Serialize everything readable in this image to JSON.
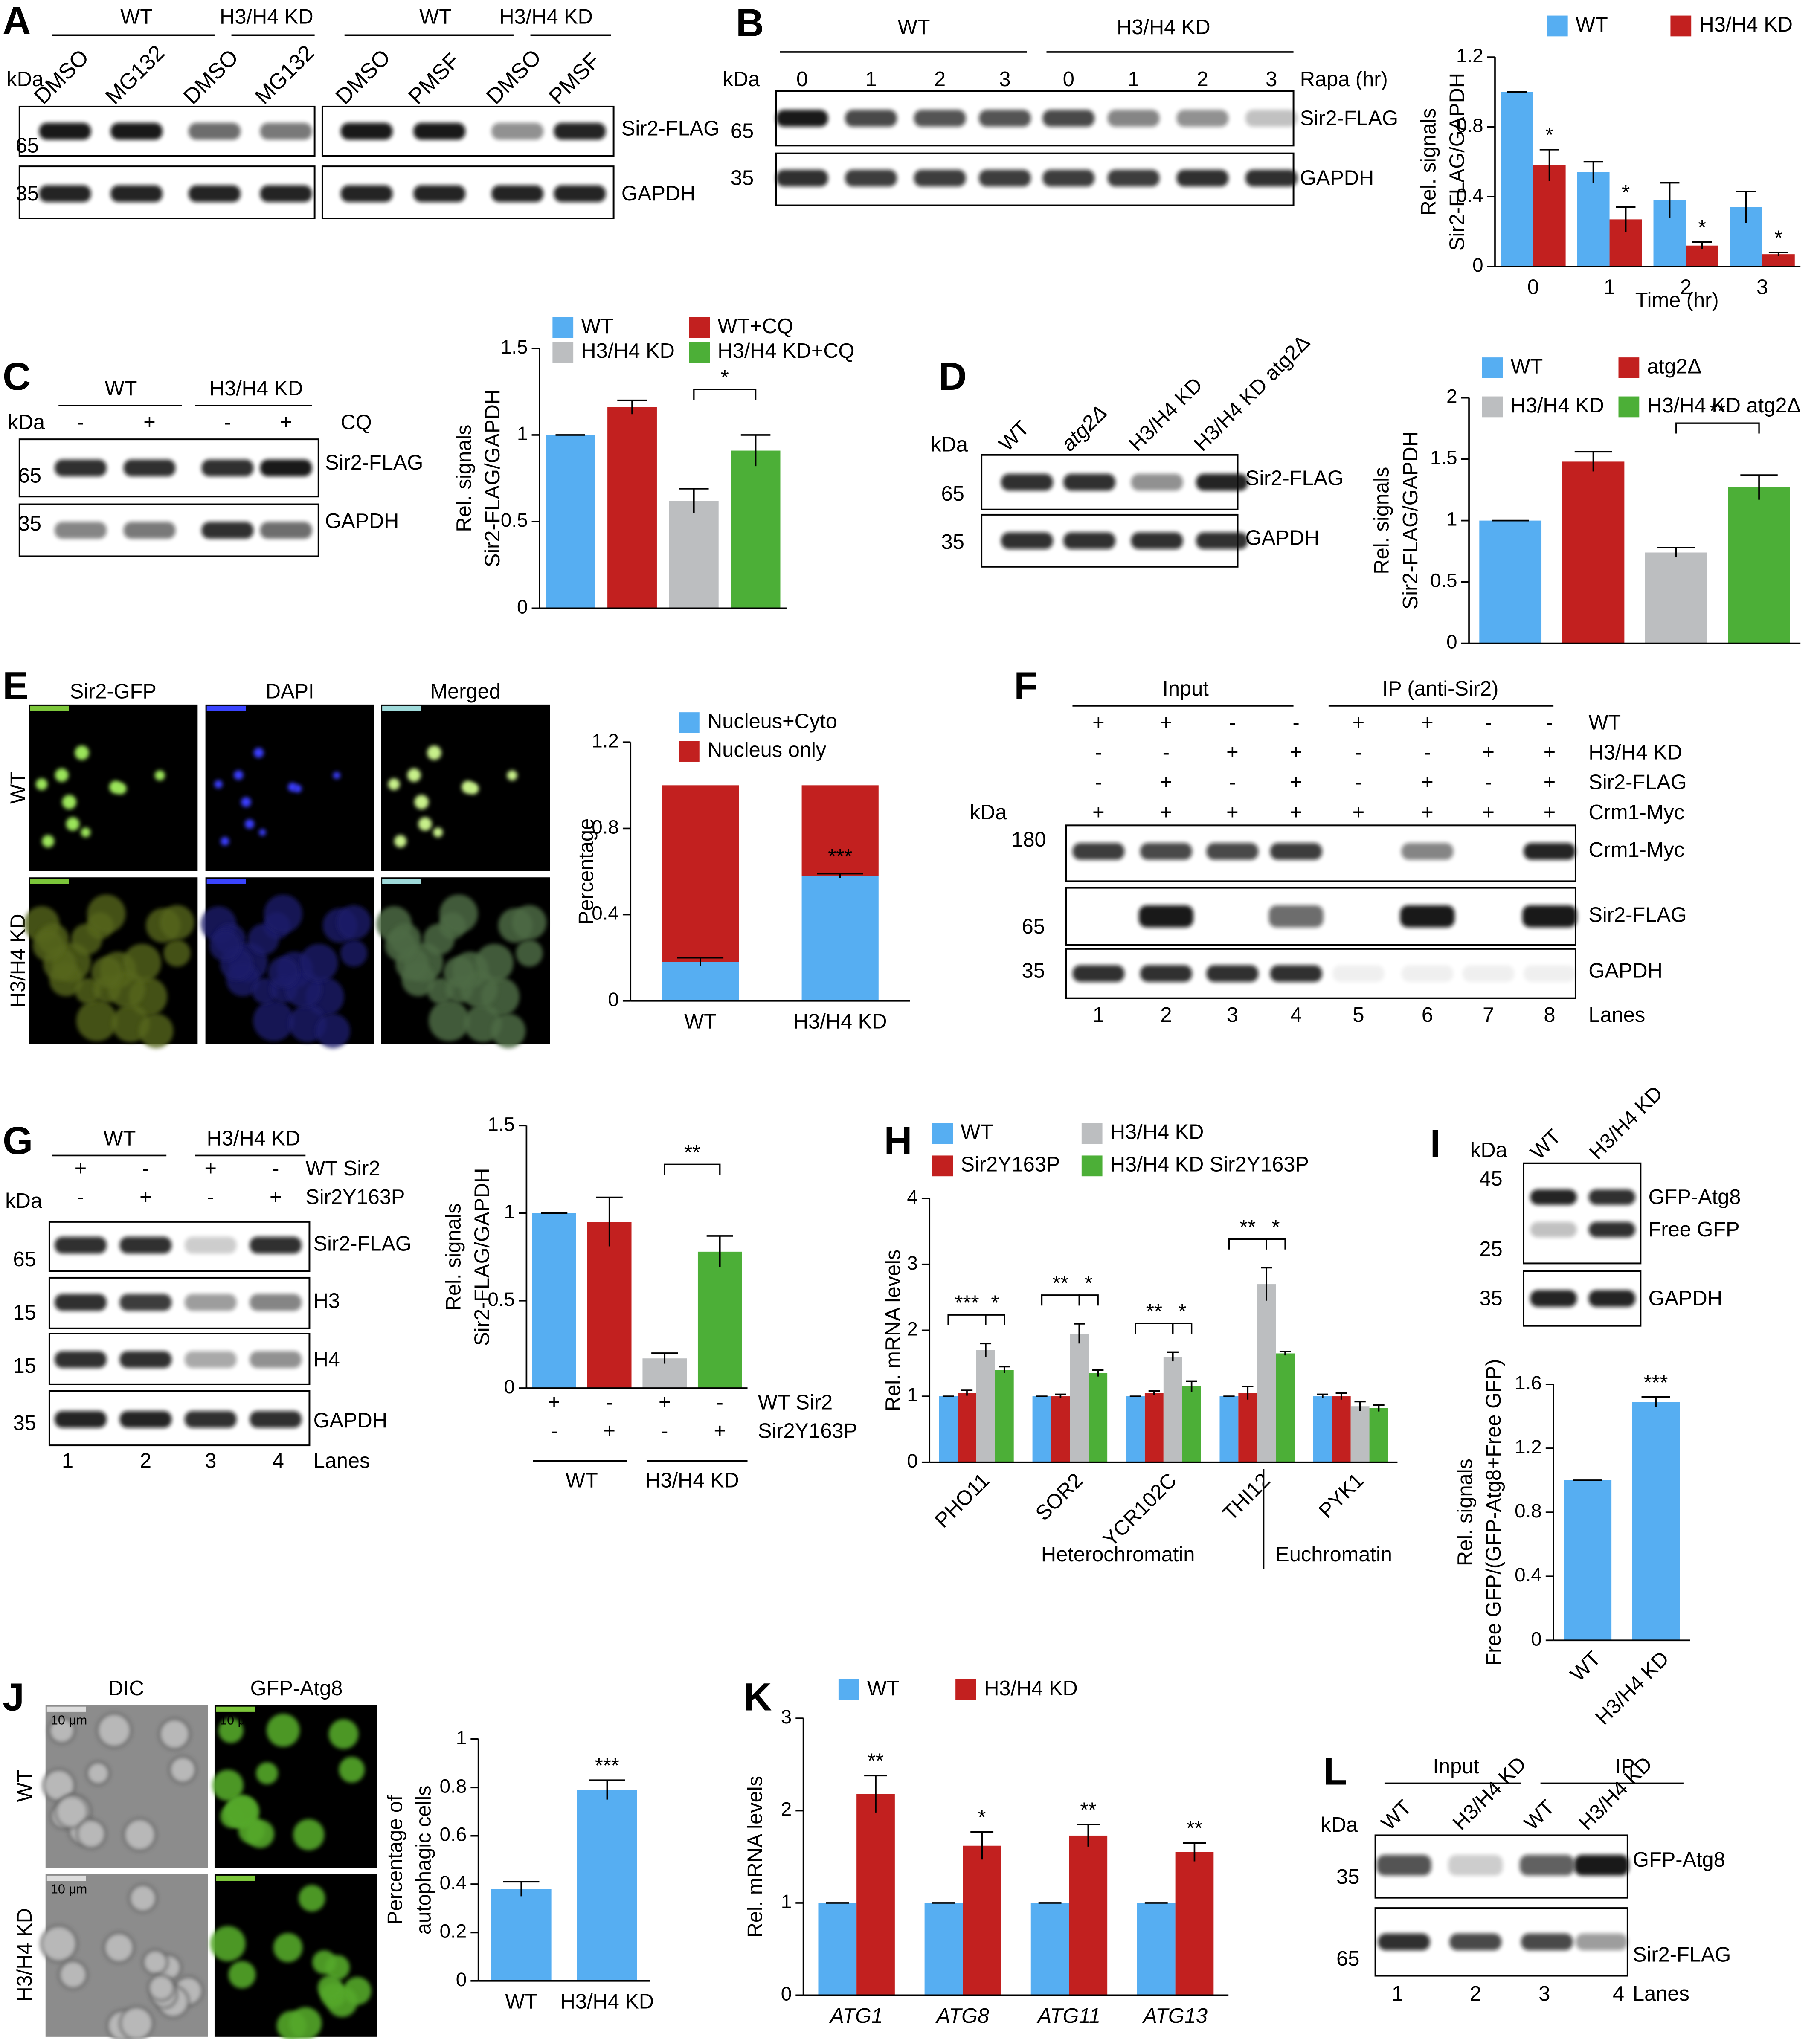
{
  "panel_letters": [
    "A",
    "B",
    "C",
    "D",
    "E",
    "F",
    "G",
    "H",
    "I",
    "J",
    "K",
    "L"
  ],
  "blots": {
    "A": {
      "groups": [
        "WT",
        "H3/H4 KD",
        "WT",
        "H3/H4 KD"
      ],
      "lanes": [
        "DMSO",
        "MG132",
        "DMSO",
        "MG132",
        "DMSO",
        "PMSF",
        "DMSO",
        "PMSF"
      ],
      "kda": "kDa",
      "markers": [
        "65",
        "35"
      ],
      "bands": [
        "Sir2-FLAG",
        "GAPDH"
      ]
    },
    "B": {
      "groups": [
        "WT",
        "H3/H4 KD"
      ],
      "lanes": [
        "0",
        "1",
        "2",
        "3",
        "0",
        "1",
        "2",
        "3"
      ],
      "lane_caption": "Rapa (hr)",
      "kda": "kDa",
      "markers": [
        "65",
        "35"
      ],
      "bands": [
        "Sir2-FLAG",
        "GAPDH"
      ]
    },
    "C": {
      "groups": [
        "WT",
        "H3/H4 KD"
      ],
      "lanes": [
        "-",
        "+",
        "-",
        "+"
      ],
      "lane_caption": "CQ",
      "kda": "kDa",
      "markers": [
        "65",
        "35"
      ],
      "bands": [
        "Sir2-FLAG",
        "GAPDH"
      ]
    },
    "D": {
      "lanes": [
        "WT",
        "atg2Δ",
        "H3/H4 KD",
        "H3/H4 KD atg2Δ"
      ],
      "kda": "kDa",
      "markers": [
        "65",
        "35"
      ],
      "bands": [
        "Sir2-FLAG",
        "GAPDH"
      ]
    },
    "F": {
      "groups": [
        "Input",
        "IP (anti-Sir2)"
      ],
      "rows": [
        {
          "label": "WT",
          "signs": [
            "+",
            "+",
            "-",
            "-",
            "+",
            "+",
            "-",
            "-"
          ]
        },
        {
          "label": "H3/H4 KD",
          "signs": [
            "-",
            "-",
            "+",
            "+",
            "-",
            "-",
            "+",
            "+"
          ]
        },
        {
          "label": "Sir2-FLAG",
          "signs": [
            "-",
            "+",
            "-",
            "+",
            "-",
            "+",
            "-",
            "+"
          ]
        },
        {
          "label": "Crm1-Myc",
          "signs": [
            "+",
            "+",
            "+",
            "+",
            "+",
            "+",
            "+",
            "+"
          ]
        }
      ],
      "kda": "kDa",
      "markers": [
        "180",
        "65",
        "35"
      ],
      "bands": [
        "Crm1-Myc",
        "Sir2-FLAG",
        "GAPDH"
      ],
      "lanes": [
        "1",
        "2",
        "3",
        "4",
        "5",
        "6",
        "7",
        "8"
      ],
      "lanes_label": "Lanes"
    },
    "G": {
      "groups": [
        "WT",
        "H3/H4 KD"
      ],
      "rows": [
        {
          "label": "WT Sir2",
          "signs": [
            "+",
            "-",
            "+",
            "-"
          ]
        },
        {
          "label": "Sir2Y163P",
          "signs": [
            "-",
            "+",
            "-",
            "+"
          ]
        }
      ],
      "kda": "kDa",
      "markers": [
        "65",
        "15",
        "15",
        "35"
      ],
      "bands": [
        "Sir2-FLAG",
        "H3",
        "H4",
        "GAPDH"
      ],
      "lanes": [
        "1",
        "2",
        "3",
        "4"
      ],
      "lanes_label": "Lanes"
    },
    "I": {
      "lanes": [
        "WT",
        "H3/H4 KD"
      ],
      "kda": "kDa",
      "markers": [
        "45",
        "25",
        "35"
      ],
      "bands": [
        "GFP-Atg8",
        "Free GFP",
        "GAPDH"
      ]
    },
    "L": {
      "groups": [
        "Input",
        "IP"
      ],
      "lanes": [
        "WT",
        "H3/H4 KD",
        "WT",
        "H3/H4 KD"
      ],
      "kda": "kDa",
      "markers": [
        "35",
        "65"
      ],
      "bands": [
        "GFP-Atg8",
        "Sir2-FLAG"
      ],
      "numbers": [
        "1",
        "2",
        "3",
        "4"
      ],
      "lanes_label": "Lanes"
    }
  },
  "micrographs": {
    "E": {
      "columns": [
        "Sir2-GFP",
        "DAPI",
        "Merged"
      ],
      "rows": [
        "WT",
        "H3/H4 KD"
      ]
    },
    "J": {
      "columns": [
        "DIC",
        "GFP-Atg8"
      ],
      "rows": [
        "WT",
        "H3/H4 KD"
      ]
    },
    "scale": "10 μm"
  },
  "chart_data": [
    {
      "type": "bar",
      "y_label": [
        "Rel. signals",
        "Sir2-FLAG/GAPDH"
      ],
      "x_label": "Time (hr)",
      "categories": [
        "0",
        "1",
        "2",
        "3"
      ],
      "series": [
        {
          "name": "WT",
          "color": "#56aef2",
          "values": [
            1,
            0.54,
            0.38,
            0.34
          ],
          "errors": [
            0,
            0.06,
            0.1,
            0.09
          ]
        },
        {
          "name": "H3/H4 KD",
          "color": "#c2201f",
          "values": [
            0.58,
            0.27,
            0.12,
            0.07
          ],
          "errors": [
            0.09,
            0.07,
            0.02,
            0.01
          ]
        }
      ],
      "ylim": [
        0,
        1.2
      ],
      "yticks": [
        0,
        0.4,
        0.8,
        1.2
      ],
      "annotations": [
        "*",
        "*",
        "*",
        "*"
      ]
    },
    {
      "type": "bar",
      "y_label": [
        "Rel. signals",
        "Sir2-FLAG/GAPDH"
      ],
      "categories": [
        "WT",
        "WT+CQ",
        "H3/H4 KD",
        "H3/H4 KD+CQ"
      ],
      "colors": [
        "#56aef2",
        "#c2201f",
        "#bcbec0",
        "#4caf37"
      ],
      "values": [
        1,
        1.16,
        0.62,
        0.91
      ],
      "errors": [
        0,
        0.04,
        0.07,
        0.09
      ],
      "ylim": [
        0,
        1.5
      ],
      "yticks": [
        0,
        0.5,
        1,
        1.5
      ],
      "annotations": [
        "*"
      ]
    },
    {
      "type": "bar",
      "y_label": [
        "Rel. signals",
        "Sir2-FLAG/GAPDH"
      ],
      "categories": [
        "WT",
        "atg2Δ",
        "H3/H4 KD",
        "H3/H4 KD atg2Δ"
      ],
      "colors": [
        "#56aef2",
        "#c2201f",
        "#bcbec0",
        "#4caf37"
      ],
      "values": [
        1,
        1.48,
        0.74,
        1.27
      ],
      "errors": [
        0,
        0.08,
        0.04,
        0.1
      ],
      "ylim": [
        0,
        2
      ],
      "yticks": [
        0,
        0.5,
        1,
        1.5,
        2
      ],
      "annotations": [
        "**"
      ]
    },
    {
      "type": "bar",
      "stacked": true,
      "y_label": [
        "Percentage"
      ],
      "categories": [
        "WT",
        "H3/H4 KD"
      ],
      "series": [
        {
          "name": "Nucleus+Cyto",
          "color": "#56aef2",
          "values": [
            0.18,
            0.58
          ],
          "errors": [
            0.02,
            0.01
          ]
        },
        {
          "name": "Nucleus only",
          "color": "#c2201f",
          "values": [
            0.82,
            0.42
          ]
        }
      ],
      "ylim": [
        0,
        1.2
      ],
      "yticks": [
        0,
        0.4,
        0.8,
        1.2
      ],
      "annotations": [
        "***"
      ]
    },
    {
      "type": "bar",
      "y_label": [
        "Rel. signals",
        "Sir2-FLAG/GAPDH"
      ],
      "colors": [
        "#56aef2",
        "#c2201f",
        "#bcbec0",
        "#4caf37"
      ],
      "values": [
        1,
        0.95,
        0.17,
        0.78
      ],
      "errors": [
        0,
        0.14,
        0.03,
        0.09
      ],
      "ylim": [
        0,
        1.5
      ],
      "yticks": [
        0,
        0.5,
        1,
        1.5
      ],
      "annotations": [
        "**"
      ],
      "x_table": {
        "rows": [
          {
            "label": "WT Sir2",
            "signs": [
              "+",
              "-",
              "+",
              "-"
            ]
          },
          {
            "label": "Sir2Y163P",
            "signs": [
              "-",
              "+",
              "-",
              "+"
            ]
          }
        ],
        "groups": [
          "WT",
          "H3/H4 KD"
        ]
      }
    },
    {
      "type": "bar",
      "y_label": [
        "Rel. mRNA levels"
      ],
      "categories": [
        "PHO11",
        "SOR2",
        "YCR102C",
        "THI12",
        "PYK1"
      ],
      "series": [
        {
          "name": "WT",
          "color": "#56aef2",
          "values": [
            1,
            1,
            1,
            1,
            1
          ],
          "errors": [
            0,
            0,
            0,
            0,
            0.03
          ]
        },
        {
          "name": "Sir2Y163P",
          "color": "#c2201f",
          "values": [
            1.05,
            1,
            1.05,
            1.05,
            1
          ],
          "errors": [
            0.04,
            0.03,
            0.03,
            0.1,
            0.05
          ]
        },
        {
          "name": "H3/H4 KD",
          "color": "#bcbec0",
          "values": [
            1.7,
            1.95,
            1.6,
            2.7,
            0.85
          ],
          "errors": [
            0.1,
            0.15,
            0.07,
            0.25,
            0.07
          ]
        },
        {
          "name": "H3/H4 KD Sir2Y163P",
          "color": "#4caf37",
          "values": [
            1.4,
            1.35,
            1.15,
            1.65,
            0.82
          ],
          "errors": [
            0.05,
            0.05,
            0.08,
            0.03,
            0.05
          ]
        }
      ],
      "ylim": [
        0,
        4
      ],
      "yticks": [
        0,
        1,
        2,
        3,
        4
      ],
      "groups": [
        "Heterochromatin",
        "Euchromatin"
      ],
      "annotations": [
        "***",
        "*",
        "**",
        "*",
        "**",
        "*",
        "**",
        "*"
      ]
    },
    {
      "type": "bar",
      "y_label": [
        "Rel. signals",
        "Free GFP/(GFP-Atg8+Free GFP)"
      ],
      "categories": [
        "WT",
        "H3/H4 KD"
      ],
      "color": "#56aef2",
      "values": [
        1,
        1.49
      ],
      "errors": [
        0,
        0.03
      ],
      "ylim": [
        0,
        1.6
      ],
      "yticks": [
        0,
        0.4,
        0.8,
        1.2,
        1.6
      ],
      "annotations": [
        "***"
      ]
    },
    {
      "type": "bar",
      "y_label": [
        "Percentage of",
        "autophagic cells"
      ],
      "categories": [
        "WT",
        "H3/H4 KD"
      ],
      "color": "#56aef2",
      "values": [
        0.38,
        0.79
      ],
      "errors": [
        0.03,
        0.04
      ],
      "ylim": [
        0,
        1
      ],
      "yticks": [
        0,
        0.2,
        0.4,
        0.6,
        0.8,
        1
      ],
      "annotations": [
        "***"
      ]
    },
    {
      "type": "bar",
      "y_label": [
        "Rel. mRNA levels"
      ],
      "categories": [
        "ATG1",
        "ATG8",
        "ATG11",
        "ATG13"
      ],
      "series": [
        {
          "name": "WT",
          "color": "#56aef2",
          "values": [
            1,
            1,
            1,
            1
          ],
          "errors": [
            0,
            0,
            0,
            0
          ]
        },
        {
          "name": "H3/H4 KD",
          "color": "#c2201f",
          "values": [
            2.18,
            1.62,
            1.73,
            1.55
          ],
          "errors": [
            0.2,
            0.15,
            0.12,
            0.1
          ]
        }
      ],
      "ylim": [
        0,
        3
      ],
      "yticks": [
        0,
        1,
        2,
        3
      ],
      "annotations": [
        "**",
        "*",
        "**",
        "**"
      ]
    }
  ]
}
